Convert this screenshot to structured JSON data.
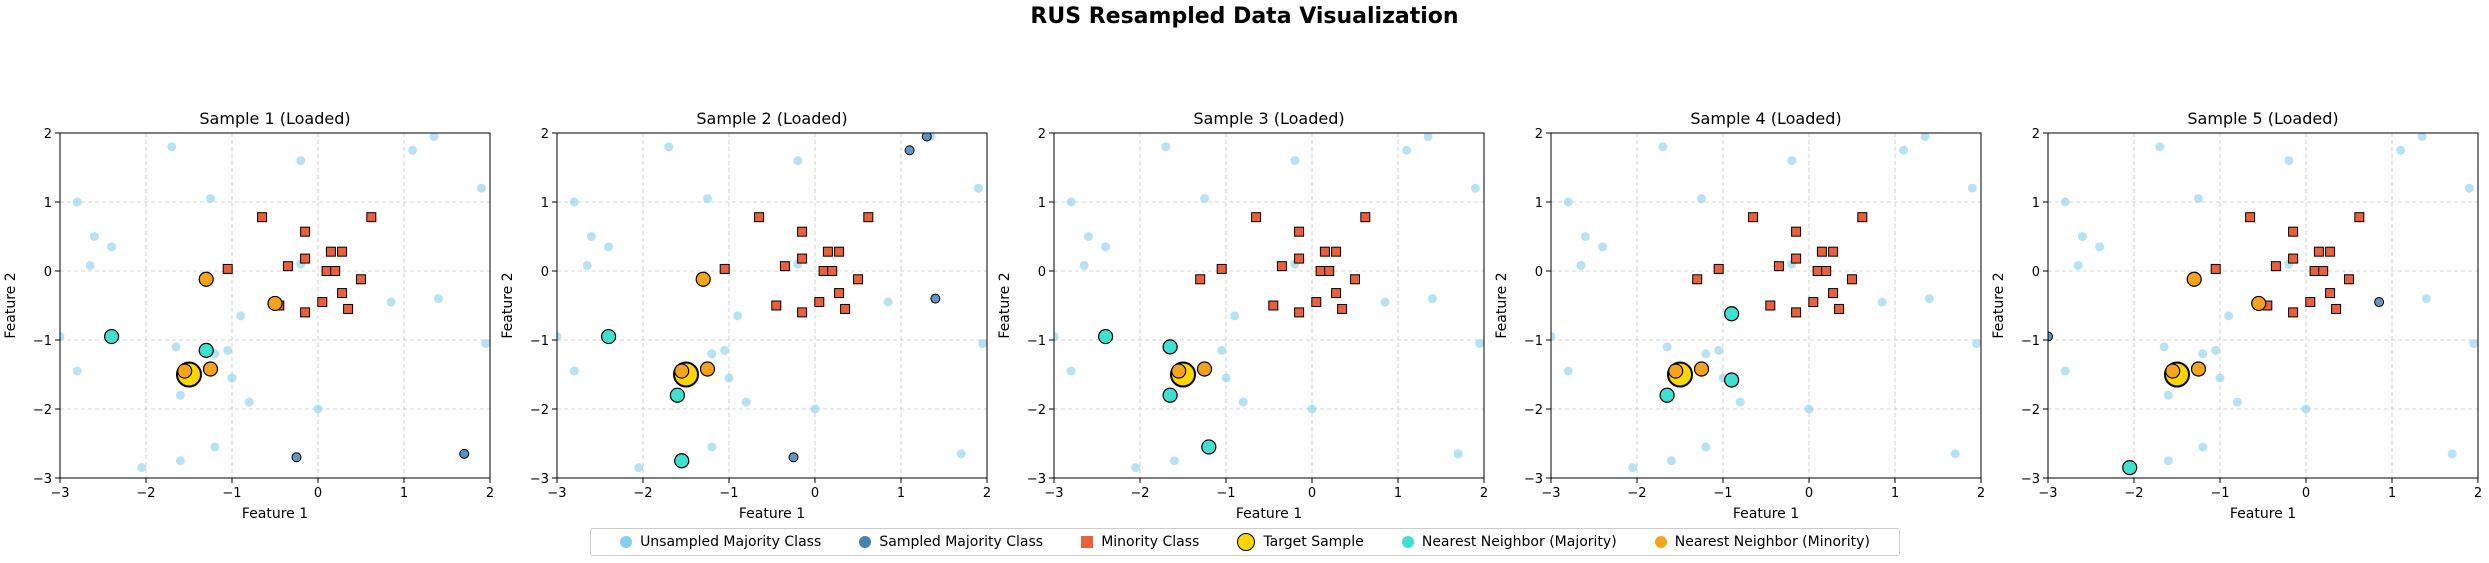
{
  "suptitle": "RUS Resampled Data Visualization",
  "colors": {
    "unsampled_majority": "#87ceeb",
    "sampled_majority": "#4682b4",
    "minority": "#e8603c",
    "target": "#ffd700",
    "nn_majority": "#40e0d0",
    "nn_minority": "#f5a31a"
  },
  "legend": [
    {
      "label": "Unsampled Majority Class",
      "marker": "circle",
      "color": "#87ceeb"
    },
    {
      "label": "Sampled Majority Class",
      "marker": "circle",
      "color": "#4682b4"
    },
    {
      "label": "Minority Class",
      "marker": "square",
      "color": "#e8603c"
    },
    {
      "label": "Target Sample",
      "marker": "circle-large",
      "color": "#ffd700"
    },
    {
      "label": "Nearest Neighbor (Majority)",
      "marker": "circle",
      "color": "#40e0d0"
    },
    {
      "label": "Nearest Neighbor (Minority)",
      "marker": "circle",
      "color": "#f5a31a"
    }
  ],
  "chart_data": [
    {
      "type": "scatter",
      "title": "Sample 1 (Loaded)",
      "xlabel": "Feature 1",
      "ylabel": "Feature 2",
      "xlim": [
        -3,
        2
      ],
      "ylim": [
        -3,
        2
      ],
      "grid": true,
      "xticks": [
        "−3",
        "−2",
        "−1",
        "0",
        "1",
        "2"
      ],
      "yticks": [
        "−3",
        "−2",
        "−1",
        "0",
        "1",
        "2"
      ],
      "unsampled_majority": [
        [
          -2.8,
          1.0
        ],
        [
          -2.6,
          0.5
        ],
        [
          -2.4,
          0.35
        ],
        [
          -2.65,
          0.08
        ],
        [
          -1.7,
          1.8
        ],
        [
          -1.25,
          1.05
        ],
        [
          -0.2,
          1.6
        ],
        [
          1.1,
          1.75
        ],
        [
          1.35,
          1.95
        ],
        [
          1.9,
          1.2
        ],
        [
          1.95,
          -1.05
        ],
        [
          1.4,
          -0.4
        ],
        [
          0.85,
          -0.45
        ],
        [
          -0.2,
          0.1
        ],
        [
          -0.9,
          -0.65
        ],
        [
          -1.05,
          -1.15
        ],
        [
          -1.2,
          -1.2
        ],
        [
          -1.65,
          -1.1
        ],
        [
          -1.6,
          -1.8
        ],
        [
          -1.0,
          -1.55
        ],
        [
          -0.8,
          -1.9
        ],
        [
          -1.2,
          -2.55
        ],
        [
          -1.6,
          -2.75
        ],
        [
          0.0,
          -2.0
        ],
        [
          -2.8,
          -1.45
        ],
        [
          -3.0,
          -0.95
        ],
        [
          -2.05,
          -2.85
        ],
        [
          1.7,
          -2.65
        ]
      ],
      "sampled_majority": [
        [
          -0.25,
          -2.7
        ],
        [
          1.7,
          -2.65
        ]
      ],
      "minority": [
        [
          -0.65,
          0.78
        ],
        [
          -0.15,
          0.57
        ],
        [
          0.62,
          0.78
        ],
        [
          -1.05,
          0.03
        ],
        [
          -0.15,
          0.18
        ],
        [
          0.15,
          0.28
        ],
        [
          0.28,
          0.28
        ],
        [
          -0.35,
          0.07
        ],
        [
          0.1,
          0.0
        ],
        [
          0.2,
          0.0
        ],
        [
          0.5,
          -0.12
        ],
        [
          0.28,
          -0.32
        ],
        [
          0.35,
          -0.55
        ],
        [
          0.05,
          -0.45
        ],
        [
          -0.15,
          -0.6
        ],
        [
          -0.45,
          -0.5
        ]
      ],
      "target": [
        -1.5,
        -1.5
      ],
      "nn_majority": [
        [
          -2.4,
          -0.95
        ],
        [
          -1.3,
          -1.15
        ]
      ],
      "nn_minority": [
        [
          -1.3,
          -0.12
        ],
        [
          -0.5,
          -0.47
        ],
        [
          -1.25,
          -1.42
        ],
        [
          -1.55,
          -1.45
        ]
      ]
    },
    {
      "type": "scatter",
      "title": "Sample 2 (Loaded)",
      "xlabel": "Feature 1",
      "ylabel": "Feature 2",
      "xlim": [
        -3,
        2
      ],
      "ylim": [
        -3,
        2
      ],
      "grid": true,
      "xticks": [
        "−3",
        "−2",
        "−1",
        "0",
        "1",
        "2"
      ],
      "yticks": [
        "−3",
        "−2",
        "−1",
        "0",
        "1",
        "2"
      ],
      "unsampled_majority": [
        [
          -2.8,
          1.0
        ],
        [
          -2.6,
          0.5
        ],
        [
          -2.4,
          0.35
        ],
        [
          -2.65,
          0.08
        ],
        [
          -1.7,
          1.8
        ],
        [
          -1.25,
          1.05
        ],
        [
          -0.2,
          1.6
        ],
        [
          1.35,
          1.95
        ],
        [
          1.9,
          1.2
        ],
        [
          1.95,
          -1.05
        ],
        [
          0.85,
          -0.45
        ],
        [
          -0.2,
          0.1
        ],
        [
          -0.9,
          -0.65
        ],
        [
          -1.05,
          -1.15
        ],
        [
          -1.2,
          -1.2
        ],
        [
          -1.0,
          -1.55
        ],
        [
          -0.8,
          -1.9
        ],
        [
          -1.2,
          -2.55
        ],
        [
          0.0,
          -2.0
        ],
        [
          -2.8,
          -1.45
        ],
        [
          -3.0,
          -0.95
        ],
        [
          -2.05,
          -2.85
        ],
        [
          1.7,
          -2.65
        ]
      ],
      "sampled_majority": [
        [
          1.1,
          1.75
        ],
        [
          1.3,
          1.95
        ],
        [
          1.4,
          -0.4
        ],
        [
          -0.25,
          -2.7
        ]
      ],
      "minority": [
        [
          -0.65,
          0.78
        ],
        [
          -0.15,
          0.57
        ],
        [
          0.62,
          0.78
        ],
        [
          -1.05,
          0.03
        ],
        [
          -0.15,
          0.18
        ],
        [
          0.15,
          0.28
        ],
        [
          0.28,
          0.28
        ],
        [
          -0.35,
          0.07
        ],
        [
          0.1,
          0.0
        ],
        [
          0.2,
          0.0
        ],
        [
          0.5,
          -0.12
        ],
        [
          0.28,
          -0.32
        ],
        [
          0.35,
          -0.55
        ],
        [
          0.05,
          -0.45
        ],
        [
          -0.15,
          -0.6
        ],
        [
          -0.45,
          -0.5
        ]
      ],
      "target": [
        -1.5,
        -1.5
      ],
      "nn_majority": [
        [
          -2.4,
          -0.95
        ],
        [
          -1.6,
          -1.8
        ],
        [
          -1.55,
          -2.75
        ]
      ],
      "nn_minority": [
        [
          -1.3,
          -0.12
        ],
        [
          -1.25,
          -1.42
        ],
        [
          -1.55,
          -1.45
        ]
      ]
    },
    {
      "type": "scatter",
      "title": "Sample 3 (Loaded)",
      "xlabel": "Feature 1",
      "ylabel": "Feature 2",
      "xlim": [
        -3,
        2
      ],
      "ylim": [
        -3,
        2
      ],
      "grid": true,
      "xticks": [
        "−3",
        "−2",
        "−1",
        "0",
        "1",
        "2"
      ],
      "yticks": [
        "−3",
        "−2",
        "−1",
        "0",
        "1",
        "2"
      ],
      "unsampled_majority": [
        [
          -2.8,
          1.0
        ],
        [
          -2.6,
          0.5
        ],
        [
          -2.4,
          0.35
        ],
        [
          -2.65,
          0.08
        ],
        [
          -1.7,
          1.8
        ],
        [
          -1.25,
          1.05
        ],
        [
          -0.2,
          1.6
        ],
        [
          1.1,
          1.75
        ],
        [
          1.35,
          1.95
        ],
        [
          1.9,
          1.2
        ],
        [
          1.95,
          -1.05
        ],
        [
          1.4,
          -0.4
        ],
        [
          0.85,
          -0.45
        ],
        [
          -0.2,
          0.1
        ],
        [
          -0.9,
          -0.65
        ],
        [
          -1.05,
          -1.15
        ],
        [
          -1.65,
          -1.1
        ],
        [
          -1.0,
          -1.55
        ],
        [
          -0.8,
          -1.9
        ],
        [
          -1.6,
          -2.75
        ],
        [
          0.0,
          -2.0
        ],
        [
          -2.8,
          -1.45
        ],
        [
          -3.0,
          -0.95
        ],
        [
          -2.05,
          -2.85
        ],
        [
          1.7,
          -2.65
        ]
      ],
      "sampled_majority": [],
      "minority": [
        [
          -0.65,
          0.78
        ],
        [
          -0.15,
          0.57
        ],
        [
          0.62,
          0.78
        ],
        [
          -1.05,
          0.03
        ],
        [
          -0.15,
          0.18
        ],
        [
          0.15,
          0.28
        ],
        [
          0.28,
          0.28
        ],
        [
          -0.35,
          0.07
        ],
        [
          0.1,
          0.0
        ],
        [
          0.2,
          0.0
        ],
        [
          0.5,
          -0.12
        ],
        [
          0.28,
          -0.32
        ],
        [
          0.35,
          -0.55
        ],
        [
          0.05,
          -0.45
        ],
        [
          -0.15,
          -0.6
        ],
        [
          -0.45,
          -0.5
        ],
        [
          -1.3,
          -0.12
        ]
      ],
      "target": [
        -1.5,
        -1.5
      ],
      "nn_majority": [
        [
          -2.4,
          -0.95
        ],
        [
          -1.65,
          -1.1
        ],
        [
          -1.65,
          -1.8
        ],
        [
          -1.2,
          -2.55
        ]
      ],
      "nn_minority": [
        [
          -1.25,
          -1.42
        ],
        [
          -1.55,
          -1.45
        ]
      ]
    },
    {
      "type": "scatter",
      "title": "Sample 4 (Loaded)",
      "xlabel": "Feature 1",
      "ylabel": "Feature 2",
      "xlim": [
        -3,
        2
      ],
      "ylim": [
        -3,
        2
      ],
      "grid": true,
      "xticks": [
        "−3",
        "−2",
        "−1",
        "0",
        "1",
        "2"
      ],
      "yticks": [
        "−3",
        "−2",
        "−1",
        "0",
        "1",
        "2"
      ],
      "unsampled_majority": [
        [
          -2.8,
          1.0
        ],
        [
          -2.6,
          0.5
        ],
        [
          -2.4,
          0.35
        ],
        [
          -2.65,
          0.08
        ],
        [
          -1.7,
          1.8
        ],
        [
          -1.25,
          1.05
        ],
        [
          -0.2,
          1.6
        ],
        [
          1.1,
          1.75
        ],
        [
          1.35,
          1.95
        ],
        [
          1.9,
          1.2
        ],
        [
          1.95,
          -1.05
        ],
        [
          1.4,
          -0.4
        ],
        [
          0.85,
          -0.45
        ],
        [
          -0.2,
          0.1
        ],
        [
          -0.9,
          -0.65
        ],
        [
          -1.05,
          -1.15
        ],
        [
          -1.2,
          -1.2
        ],
        [
          -1.65,
          -1.1
        ],
        [
          -1.0,
          -1.55
        ],
        [
          -0.8,
          -1.9
        ],
        [
          -1.2,
          -2.55
        ],
        [
          -1.6,
          -2.75
        ],
        [
          0.0,
          -2.0
        ],
        [
          -2.8,
          -1.45
        ],
        [
          -3.0,
          -0.95
        ],
        [
          -2.05,
          -2.85
        ],
        [
          1.7,
          -2.65
        ]
      ],
      "sampled_majority": [],
      "minority": [
        [
          -0.65,
          0.78
        ],
        [
          -0.15,
          0.57
        ],
        [
          0.62,
          0.78
        ],
        [
          -1.05,
          0.03
        ],
        [
          -0.15,
          0.18
        ],
        [
          0.15,
          0.28
        ],
        [
          0.28,
          0.28
        ],
        [
          -0.35,
          0.07
        ],
        [
          0.1,
          0.0
        ],
        [
          0.2,
          0.0
        ],
        [
          0.5,
          -0.12
        ],
        [
          0.28,
          -0.32
        ],
        [
          0.35,
          -0.55
        ],
        [
          0.05,
          -0.45
        ],
        [
          -0.15,
          -0.6
        ],
        [
          -0.45,
          -0.5
        ],
        [
          -1.3,
          -0.12
        ]
      ],
      "target": [
        -1.5,
        -1.5
      ],
      "nn_majority": [
        [
          -0.9,
          -0.62
        ],
        [
          -1.5,
          -1.55
        ],
        [
          -0.9,
          -1.58
        ],
        [
          -1.65,
          -1.8
        ]
      ],
      "nn_minority": [
        [
          -1.25,
          -1.42
        ],
        [
          -1.55,
          -1.45
        ]
      ]
    },
    {
      "type": "scatter",
      "title": "Sample 5 (Loaded)",
      "xlabel": "Feature 1",
      "ylabel": "Feature 2",
      "xlim": [
        -3,
        2
      ],
      "ylim": [
        -3,
        2
      ],
      "grid": true,
      "xticks": [
        "−3",
        "−2",
        "−1",
        "0",
        "1",
        "2"
      ],
      "yticks": [
        "−3",
        "−2",
        "−1",
        "0",
        "1",
        "2"
      ],
      "unsampled_majority": [
        [
          -2.8,
          1.0
        ],
        [
          -2.6,
          0.5
        ],
        [
          -2.4,
          0.35
        ],
        [
          -2.65,
          0.08
        ],
        [
          -1.7,
          1.8
        ],
        [
          -1.25,
          1.05
        ],
        [
          -0.2,
          1.6
        ],
        [
          1.1,
          1.75
        ],
        [
          1.35,
          1.95
        ],
        [
          1.9,
          1.2
        ],
        [
          1.95,
          -1.05
        ],
        [
          1.4,
          -0.4
        ],
        [
          -0.2,
          0.1
        ],
        [
          -0.9,
          -0.65
        ],
        [
          -1.05,
          -1.15
        ],
        [
          -1.2,
          -1.2
        ],
        [
          -1.65,
          -1.1
        ],
        [
          -1.6,
          -1.8
        ],
        [
          -1.0,
          -1.55
        ],
        [
          -0.8,
          -1.9
        ],
        [
          -1.2,
          -2.55
        ],
        [
          -1.6,
          -2.75
        ],
        [
          0.0,
          -2.0
        ],
        [
          -2.8,
          -1.45
        ],
        [
          1.7,
          -2.65
        ]
      ],
      "sampled_majority": [
        [
          0.85,
          -0.45
        ],
        [
          -3.0,
          -0.95
        ]
      ],
      "minority": [
        [
          -0.65,
          0.78
        ],
        [
          -0.15,
          0.57
        ],
        [
          0.62,
          0.78
        ],
        [
          -1.05,
          0.03
        ],
        [
          -0.15,
          0.18
        ],
        [
          0.15,
          0.28
        ],
        [
          0.28,
          0.28
        ],
        [
          -0.35,
          0.07
        ],
        [
          0.1,
          0.0
        ],
        [
          0.2,
          0.0
        ],
        [
          0.5,
          -0.12
        ],
        [
          0.28,
          -0.32
        ],
        [
          0.35,
          -0.55
        ],
        [
          0.05,
          -0.45
        ],
        [
          -0.15,
          -0.6
        ],
        [
          -0.45,
          -0.5
        ]
      ],
      "target": [
        -1.5,
        -1.5
      ],
      "nn_majority": [
        [
          -1.45,
          -1.5
        ],
        [
          -2.05,
          -2.85
        ]
      ],
      "nn_minority": [
        [
          -1.3,
          -0.12
        ],
        [
          -0.55,
          -0.47
        ],
        [
          -1.25,
          -1.42
        ],
        [
          -1.55,
          -1.45
        ]
      ]
    }
  ]
}
